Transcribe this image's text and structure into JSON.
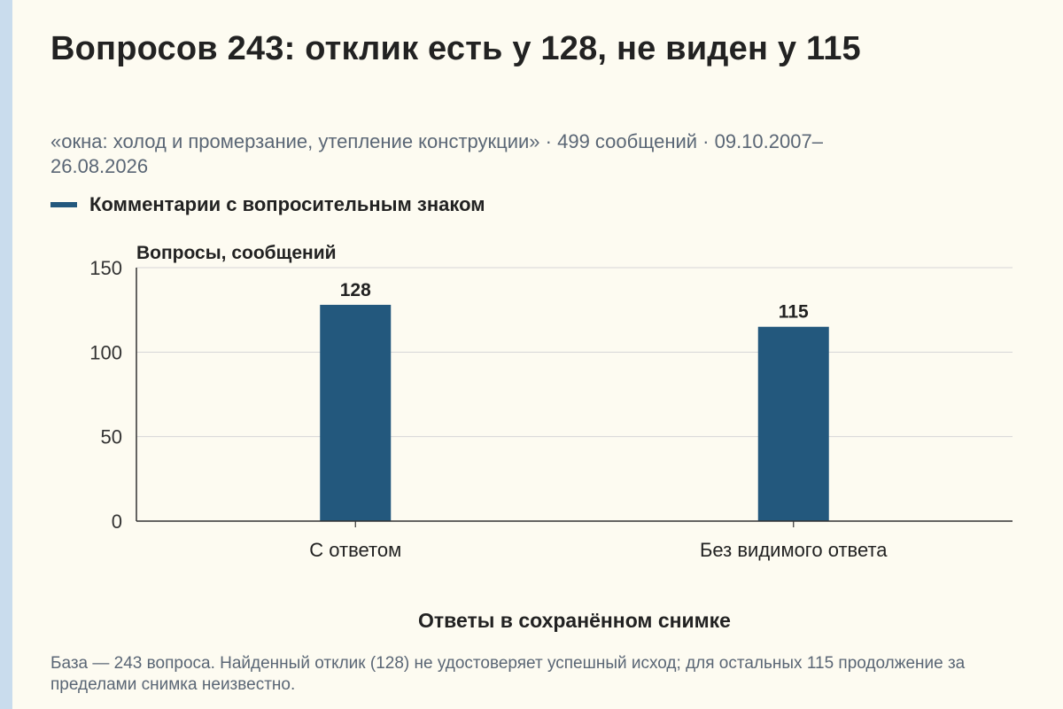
{
  "title": "Вопросов 243: отклик есть у 128, не виден у 115",
  "subtitle": "«окна: холод и промерзание, утепление конструкции» · 499 сообщений · 09.10.2007–26.08.2026",
  "footnote": "База — 243 вопроса. Найденный отклик (128) не удостоверяет успешный исход; для остальных 115 продолжение за пределами снимка неизвестно.",
  "colors": {
    "bar": "#23587d",
    "grid": "#d6d6d6",
    "axis": "#333333",
    "accent_rule": "#c9dced"
  },
  "chart_data": {
    "type": "bar",
    "title": "Вопросов 243: отклик есть у 128, не виден у 115",
    "xlabel": "Ответы в сохранённом снимке",
    "ylabel": "Вопросы, сообщений",
    "ylim": [
      0,
      150
    ],
    "yticks": [
      0,
      50,
      100,
      150
    ],
    "grid": true,
    "legend_position": "top-left",
    "categories": [
      "С ответом",
      "Без видимого ответа"
    ],
    "series": [
      {
        "name": "Комментарии с вопросительным знаком",
        "values": [
          128,
          115
        ],
        "data_labels": [
          "128",
          "115"
        ]
      }
    ]
  }
}
